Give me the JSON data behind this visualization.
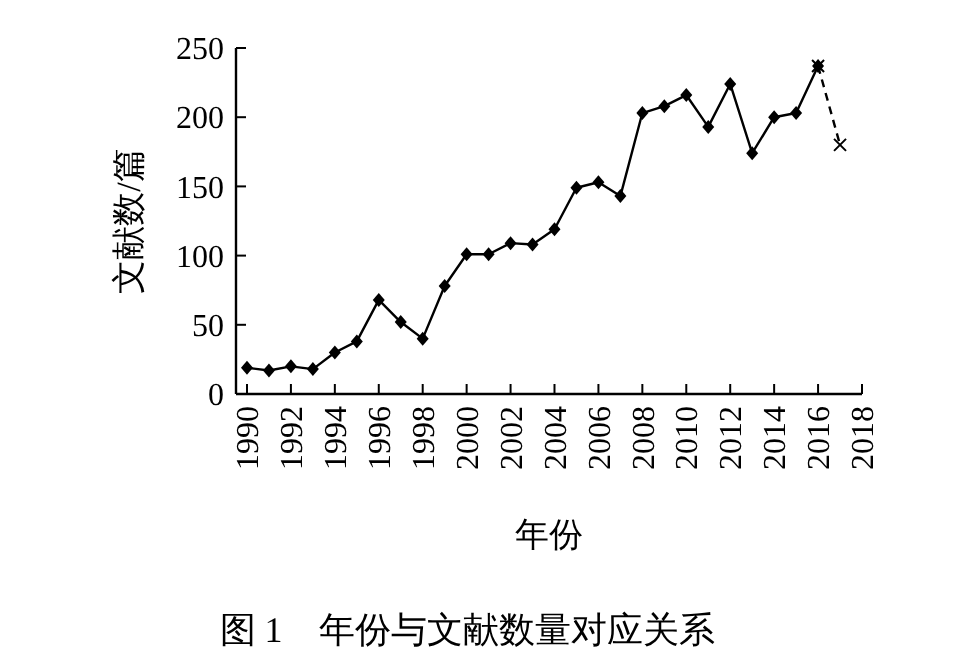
{
  "chart_data": {
    "type": "line",
    "title": "图 1　年份与文献数量对应关系",
    "xlabel": "年份",
    "ylabel": "文献数/篇",
    "xlim": [
      1989.5,
      2018
    ],
    "xticks": [
      1990,
      1992,
      1994,
      1996,
      1998,
      2000,
      2002,
      2004,
      2006,
      2008,
      2010,
      2012,
      2014,
      2016,
      2018
    ],
    "ylim": [
      0,
      250
    ],
    "yticks": [
      0,
      50,
      100,
      150,
      200,
      250
    ],
    "grid": false,
    "series": [
      {
        "color": "#000000",
        "marker": "diamond",
        "line_style": "solid",
        "x": [
          1990,
          1991,
          1992,
          1993,
          1994,
          1995,
          1996,
          1997,
          1998,
          1999,
          2000,
          2001,
          2002,
          2003,
          2004,
          2005,
          2006,
          2007,
          2008,
          2009,
          2010,
          2011,
          2012,
          2013,
          2014,
          2015,
          2016
        ],
        "values": [
          19,
          17,
          20,
          18,
          30,
          38,
          68,
          52,
          40,
          78,
          101,
          101,
          109,
          108,
          119,
          149,
          153,
          143,
          203,
          208,
          216,
          193,
          224,
          174,
          200,
          203,
          237
        ]
      },
      {
        "color": "#000000",
        "marker": "cross",
        "line_style": "dashed",
        "x": [
          2016,
          2017
        ],
        "values": [
          237,
          180
        ]
      }
    ]
  }
}
